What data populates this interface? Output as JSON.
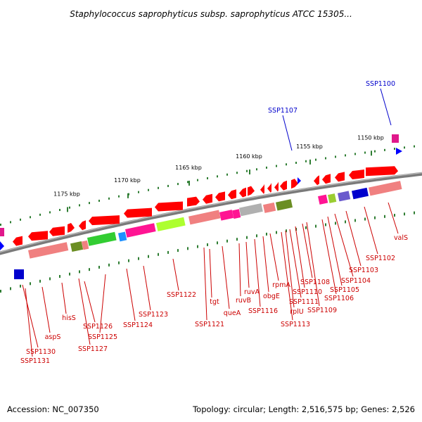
{
  "title": "Staphylococcus saprophyticus subsp. saprophyticus ATCC 15305...",
  "footer": {
    "accession": "Accession: NC_007350",
    "summary": "Topology: circular; Length: 2,516,575 bp; Genes: 2,526"
  },
  "scale_labels": [
    "1175 kbp",
    "1170 kbp",
    "1165 kbp",
    "1160 kbp",
    "1155 kbp",
    "1150 kbp"
  ],
  "blue_labels": [
    "SSP1107",
    "SSP1100"
  ],
  "gene_labels": [
    "SSP1130",
    "SSP1131",
    "aspS",
    "hisS",
    "SSP1126",
    "SSP1127",
    "SSP1125",
    "SSP1124",
    "SSP1123",
    "SSP1122",
    "SSP1121",
    "tgt",
    "queA",
    "ruvB",
    "ruvA",
    "SSP1116",
    "obgE",
    "rpmA",
    "SSP1113",
    "rplU",
    "SSP1111",
    "SSP1110",
    "SSP1108",
    "SSP1109",
    "SSP1106",
    "SSP1105",
    "SSP1104",
    "SSP1103",
    "SSP1102",
    "valS"
  ],
  "colors": {
    "gene_red": "#ff0000",
    "label_red": "#cc0000",
    "label_blue": "#0000cc",
    "backbone": "#7a7a7a",
    "tick_green": "#2e7d32"
  }
}
